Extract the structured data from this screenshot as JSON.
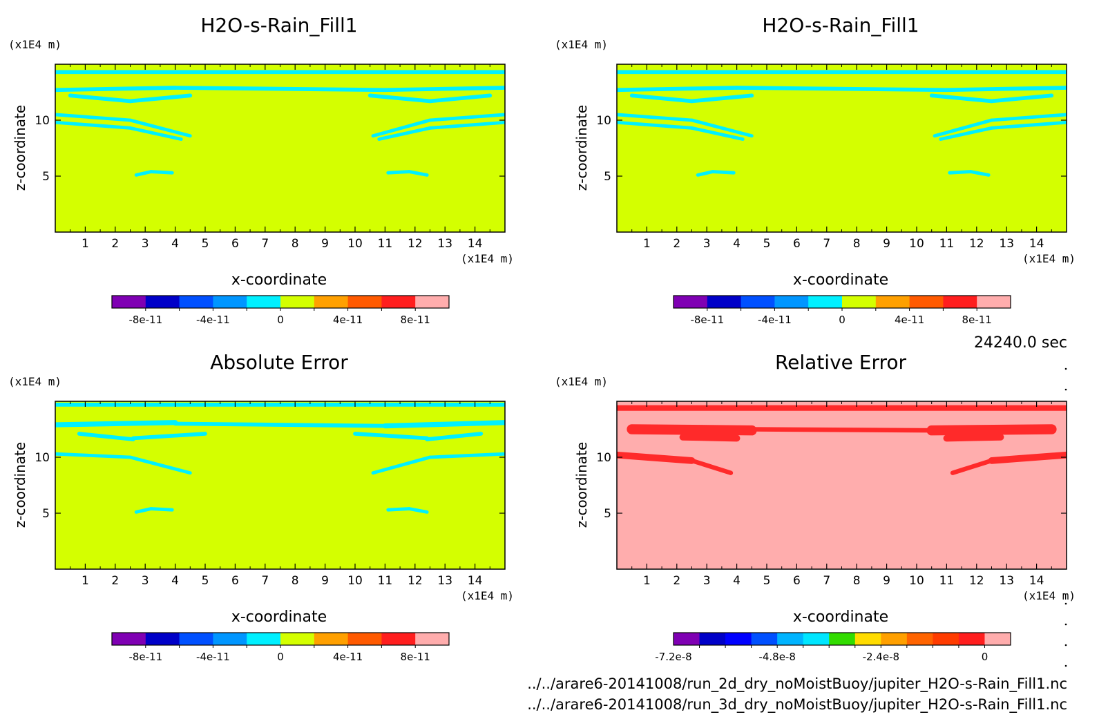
{
  "time_label": "24240.0 sec",
  "files": [
    "../../arare6-20141008/run_2d_dry_noMoistBuoy/jupiter_H2O-s-Rain_Fill1.nc",
    "../../arare6-20141008/run_3d_dry_noMoistBuoy/jupiter_H2O-s-Rain_Fill1.nc"
  ],
  "colors": {
    "field": "#d4ff00",
    "feature": "#00f0ff",
    "rel_background": "#ffadad",
    "rel_feature": "#ff2a2a",
    "frame": "#000000"
  },
  "chart_data": [
    {
      "type": "heatmap",
      "title": "H2O-s-Rain_Fill1",
      "xlabel": "x-coordinate",
      "ylabel": "z-coordinate",
      "x_unit": "(x1E4 m)",
      "y_unit": "(x1E4 m)",
      "xlim": [
        0,
        15
      ],
      "ylim": [
        0,
        15
      ],
      "x_ticks": [
        "1",
        "2",
        "3",
        "4",
        "5",
        "6",
        "7",
        "8",
        "9",
        "10",
        "11",
        "12",
        "13",
        "14"
      ],
      "y_ticks": [
        "5",
        "10"
      ],
      "colorbar": {
        "colors": [
          "#7f00b3",
          "#0000c8",
          "#0050ff",
          "#0096ff",
          "#00f0ff",
          "#d4ff00",
          "#ffa000",
          "#ff5a00",
          "#ff1e1e",
          "#ffadad"
        ],
        "tick_labels": [
          "-8e-11",
          "-4e-11",
          "0",
          "4e-11",
          "8e-11"
        ],
        "tick_positions": [
          1,
          3,
          5,
          7,
          9
        ]
      }
    },
    {
      "type": "heatmap",
      "title": "H2O-s-Rain_Fill1",
      "xlabel": "x-coordinate",
      "ylabel": "z-coordinate",
      "x_unit": "(x1E4 m)",
      "y_unit": "(x1E4 m)",
      "xlim": [
        0,
        15
      ],
      "ylim": [
        0,
        15
      ],
      "x_ticks": [
        "1",
        "2",
        "3",
        "4",
        "5",
        "6",
        "7",
        "8",
        "9",
        "10",
        "11",
        "12",
        "13",
        "14"
      ],
      "y_ticks": [
        "5",
        "10"
      ],
      "colorbar": {
        "colors": [
          "#7f00b3",
          "#0000c8",
          "#0050ff",
          "#0096ff",
          "#00f0ff",
          "#d4ff00",
          "#ffa000",
          "#ff5a00",
          "#ff1e1e",
          "#ffadad"
        ],
        "tick_labels": [
          "-8e-11",
          "-4e-11",
          "0",
          "4e-11",
          "8e-11"
        ],
        "tick_positions": [
          1,
          3,
          5,
          7,
          9
        ]
      }
    },
    {
      "type": "heatmap",
      "title": "Absolute Error",
      "xlabel": "x-coordinate",
      "ylabel": "z-coordinate",
      "x_unit": "(x1E4 m)",
      "y_unit": "(x1E4 m)",
      "xlim": [
        0,
        15
      ],
      "ylim": [
        0,
        15
      ],
      "x_ticks": [
        "1",
        "2",
        "3",
        "4",
        "5",
        "6",
        "7",
        "8",
        "9",
        "10",
        "11",
        "12",
        "13",
        "14"
      ],
      "y_ticks": [
        "5",
        "10"
      ],
      "colorbar": {
        "colors": [
          "#7f00b3",
          "#0000c8",
          "#0050ff",
          "#0096ff",
          "#00f0ff",
          "#d4ff00",
          "#ffa000",
          "#ff5a00",
          "#ff1e1e",
          "#ffadad"
        ],
        "tick_labels": [
          "-8e-11",
          "-4e-11",
          "0",
          "4e-11",
          "8e-11"
        ],
        "tick_positions": [
          1,
          3,
          5,
          7,
          9
        ]
      }
    },
    {
      "type": "heatmap",
      "title": "Relative Error",
      "xlabel": "x-coordinate",
      "ylabel": "z-coordinate",
      "x_unit": "(x1E4 m)",
      "y_unit": "(x1E4 m)",
      "xlim": [
        0,
        15
      ],
      "ylim": [
        0,
        15
      ],
      "x_ticks": [
        "1",
        "2",
        "3",
        "4",
        "5",
        "6",
        "7",
        "8",
        "9",
        "10",
        "11",
        "12",
        "13",
        "14"
      ],
      "y_ticks": [
        "5",
        "10"
      ],
      "colorbar": {
        "colors": [
          "#7f00b3",
          "#0000c8",
          "#0000ff",
          "#0050ff",
          "#00b4ff",
          "#00e6ff",
          "#32dc00",
          "#ffdc00",
          "#ffa000",
          "#ff6400",
          "#ff3c00",
          "#ff1e1e",
          "#ffadad"
        ],
        "tick_labels": [
          "-7.2e-8",
          "-4.8e-8",
          "-2.4e-8",
          "0"
        ],
        "tick_positions": [
          0,
          4,
          8,
          12
        ]
      }
    }
  ]
}
